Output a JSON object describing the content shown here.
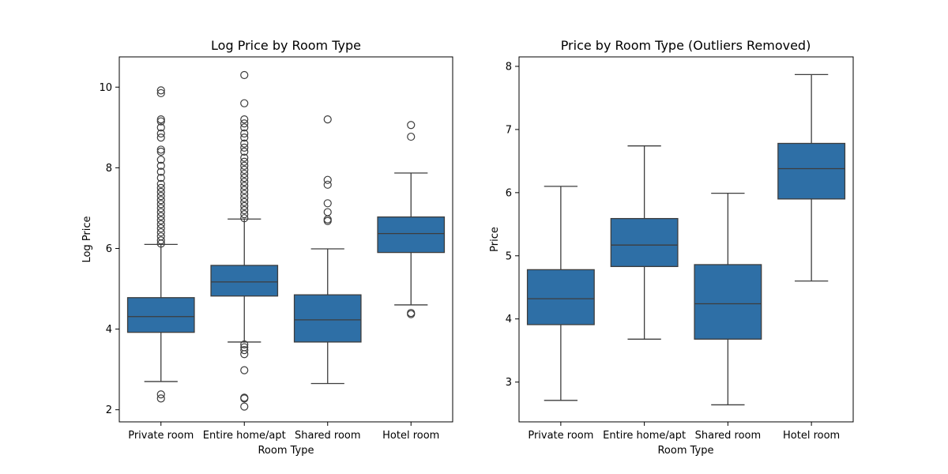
{
  "chart_data": [
    {
      "type": "box",
      "title": "Log Price by Room Type",
      "xlabel": "Room Type",
      "ylabel": "Log Price",
      "categories": [
        "Private room",
        "Entire home/apt",
        "Shared room",
        "Hotel room"
      ],
      "ylim": [
        1.7,
        10.75
      ],
      "yticks": [
        2,
        4,
        6,
        8,
        10
      ],
      "box_color": "#2e6fa6",
      "boxes": [
        {
          "category": "Private room",
          "whisker_low": 2.7,
          "q1": 3.92,
          "median": 4.31,
          "q3": 4.78,
          "whisker_high": 6.1,
          "outliers": [
            2.28,
            2.38,
            6.12,
            6.2,
            6.3,
            6.4,
            6.5,
            6.6,
            6.7,
            6.8,
            6.9,
            7.0,
            7.1,
            7.2,
            7.3,
            7.4,
            7.5,
            7.6,
            7.75,
            7.9,
            8.05,
            8.2,
            8.4,
            8.45,
            8.75,
            8.85,
            9.0,
            9.15,
            9.2,
            9.85,
            9.92
          ]
        },
        {
          "category": "Entire home/apt",
          "whisker_low": 3.68,
          "q1": 4.82,
          "median": 5.17,
          "q3": 5.58,
          "whisker_high": 6.73,
          "outliers": [
            2.08,
            2.28,
            2.3,
            2.98,
            3.38,
            3.48,
            3.55,
            3.62,
            6.75,
            6.85,
            6.95,
            7.05,
            7.15,
            7.25,
            7.35,
            7.45,
            7.55,
            7.65,
            7.75,
            7.85,
            7.95,
            8.05,
            8.15,
            8.25,
            8.4,
            8.5,
            8.6,
            8.75,
            8.85,
            9.0,
            9.1,
            9.2,
            9.6,
            10.3
          ]
        },
        {
          "category": "Shared room",
          "whisker_low": 2.65,
          "q1": 3.68,
          "median": 4.23,
          "q3": 4.85,
          "whisker_high": 5.99,
          "outliers": [
            6.68,
            6.72,
            6.9,
            7.12,
            7.58,
            7.7,
            9.2
          ]
        },
        {
          "category": "Hotel room",
          "whisker_low": 4.6,
          "q1": 5.9,
          "median": 6.37,
          "q3": 6.78,
          "whisker_high": 7.87,
          "outliers": [
            4.37,
            4.4,
            8.77,
            9.06
          ]
        }
      ]
    },
    {
      "type": "box",
      "title": "Price by Room Type (Outliers Removed)",
      "xlabel": "Room Type",
      "ylabel": "Price",
      "categories": [
        "Private room",
        "Entire home/apt",
        "Shared room",
        "Hotel room"
      ],
      "ylim": [
        2.37,
        8.15
      ],
      "yticks": [
        3,
        4,
        5,
        6,
        7,
        8
      ],
      "box_color": "#2e6fa6",
      "boxes": [
        {
          "category": "Private room",
          "whisker_low": 2.71,
          "q1": 3.91,
          "median": 4.32,
          "q3": 4.78,
          "whisker_high": 6.1,
          "outliers": []
        },
        {
          "category": "Entire home/apt",
          "whisker_low": 3.68,
          "q1": 4.83,
          "median": 5.17,
          "q3": 5.59,
          "whisker_high": 6.74,
          "outliers": []
        },
        {
          "category": "Shared room",
          "whisker_low": 2.64,
          "q1": 3.68,
          "median": 4.24,
          "q3": 4.86,
          "whisker_high": 5.99,
          "outliers": []
        },
        {
          "category": "Hotel room",
          "whisker_low": 4.6,
          "q1": 5.9,
          "median": 6.38,
          "q3": 6.78,
          "whisker_high": 7.87,
          "outliers": []
        }
      ]
    }
  ]
}
